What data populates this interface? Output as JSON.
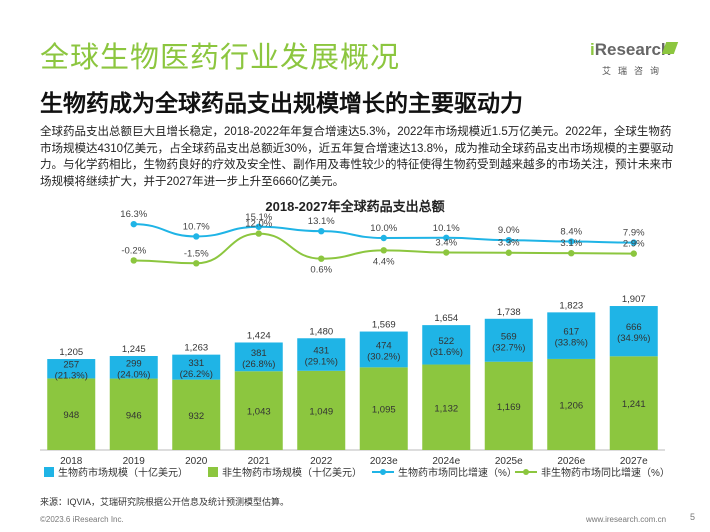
{
  "header": {
    "title": "全球生物医药行业发展概况",
    "subtitle": "生物药成为全球药品支出规模增长的主要驱动力"
  },
  "logo": {
    "brand_prefix": "i",
    "brand_rest": "Research",
    "cn": "艾瑞咨询"
  },
  "paragraph": "全球药品支出总额巨大且增长稳定，2018-2022年年复合增速达5.3%，2022年市场规模近1.5万亿美元。2022年，全球生物药市场规模达4310亿美元，占全球药品支出总额近30%，近五年复合增速达13.8%，成为推动全球药品支出市场规模的主要驱动力。与化学药相比，生物药良好的疗效及安全性、副作用及毒性较少的特征使得生物药受到越来越多的市场关注，预计未来市场规模将继续扩大，并于2027年进一步上升至6660亿美元。",
  "footer": {
    "source": "来源：IQVIA，艾瑞研究院根据公开信息及统计预测模型估算。",
    "copyright": "©2023.6 iResearch Inc.",
    "url": "www.iresearch.com.cn",
    "page": "5"
  },
  "chart_data": {
    "type": "bar",
    "title": "2018-2027年全球药品支出总额",
    "categories": [
      "2018",
      "2019",
      "2020",
      "2021",
      "2022",
      "2023e",
      "2024e",
      "2025e",
      "2026e",
      "2027e"
    ],
    "totals": [
      "1,205",
      "1,245",
      "1,263",
      "1,424",
      "1,480",
      "1,569",
      "1,654",
      "1,738",
      "1,823",
      "1,907"
    ],
    "series": [
      {
        "name": "非生物药市场规模（十亿美元）",
        "color": "#8cc63f",
        "values": [
          948,
          946,
          932,
          1043,
          1049,
          1095,
          1132,
          1169,
          1206,
          1241
        ],
        "labels": [
          "948",
          "946",
          "932",
          "1,043",
          "1,049",
          "1,095",
          "1,132",
          "1,169",
          "1,206",
          "1,241"
        ]
      },
      {
        "name": "生物药市场规模（十亿美元）",
        "color": "#1fb4e6",
        "values": [
          257,
          299,
          331,
          381,
          431,
          474,
          522,
          569,
          617,
          666
        ],
        "labels": [
          "257",
          "299",
          "331",
          "381",
          "431",
          "474",
          "522",
          "569",
          "617",
          "666"
        ],
        "share_labels": [
          "(21.3%)",
          "(24.0%)",
          "(26.2%)",
          "(26.8%)",
          "(29.1%)",
          "(30.2%)",
          "(31.6%)",
          "(32.7%)",
          "(33.8%)",
          "(34.9%)"
        ]
      }
    ],
    "growth_series": [
      {
        "name": "生物药市场同比增速（%）",
        "color": "#1fb4e6",
        "values": [
          16.3,
          10.7,
          15.1,
          13.1,
          10.0,
          10.1,
          9.0,
          8.4,
          7.9
        ],
        "labels": [
          "16.3%",
          "10.7%",
          "15.1%",
          "13.1%",
          "10.0%",
          "10.1%",
          "9.0%",
          "8.4%",
          "7.9%"
        ]
      },
      {
        "name": "非生物药市场同比增速（%）",
        "color": "#8cc63f",
        "values": [
          -0.2,
          -1.5,
          12.0,
          0.6,
          4.4,
          3.4,
          3.3,
          3.1,
          2.9
        ],
        "labels": [
          "-0.2%",
          "-1.5%",
          "12.0%",
          "0.6%",
          "4.4%",
          "3.4%",
          "3.3%",
          "3.1%",
          "2.9%"
        ]
      }
    ],
    "ylim": [
      0,
      2000
    ],
    "legend_position": "bottom"
  }
}
